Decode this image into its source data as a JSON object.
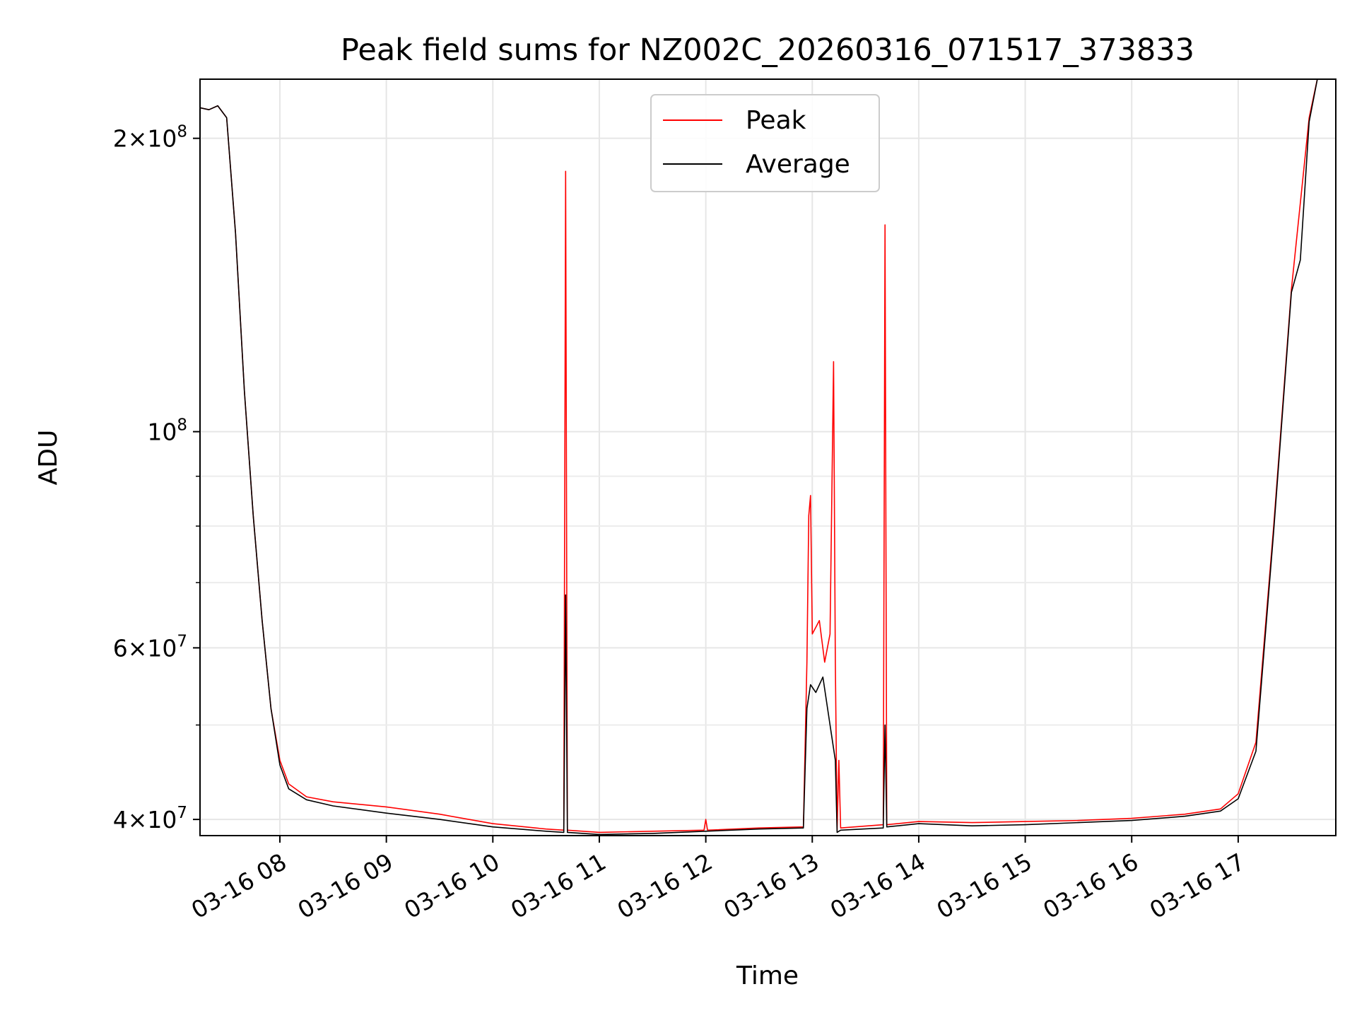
{
  "chart_data": {
    "type": "line",
    "title": "Peak field sums for NZ002C_20260316_071517_373833",
    "xlabel": "Time",
    "ylabel": "ADU",
    "yscale": "log",
    "xlim": [
      "03-16 07:15",
      "03-16 17:55"
    ],
    "ylim": [
      38500000,
      230000000
    ],
    "grid": true,
    "legend_position": "top-center",
    "x_ticks": [
      "03-16 08",
      "03-16 09",
      "03-16 10",
      "03-16 11",
      "03-16 12",
      "03-16 13",
      "03-16 14",
      "03-16 15",
      "03-16 16",
      "03-16 17"
    ],
    "y_ticks": [
      {
        "value": 40000000,
        "mantissa": "4",
        "exponent": "7"
      },
      {
        "value": 60000000,
        "mantissa": "6",
        "exponent": "7"
      },
      {
        "value": 100000000,
        "mantissa": "",
        "exponent": "8"
      },
      {
        "value": 200000000,
        "mantissa": "2",
        "exponent": "8"
      }
    ],
    "y_minor_ticks": [
      50000000,
      70000000,
      80000000,
      90000000
    ],
    "series": [
      {
        "name": "Peak",
        "color": "#ff0000",
        "points": [
          [
            "07:15",
            215000000
          ],
          [
            "07:20",
            214000000
          ],
          [
            "07:25",
            216000000
          ],
          [
            "07:30",
            210000000
          ],
          [
            "07:35",
            160000000
          ],
          [
            "07:40",
            110000000
          ],
          [
            "07:45",
            82000000
          ],
          [
            "07:50",
            64000000
          ],
          [
            "07:55",
            52000000
          ],
          [
            "08:00",
            46000000
          ],
          [
            "08:05",
            43500000
          ],
          [
            "08:15",
            42200000
          ],
          [
            "08:30",
            41700000
          ],
          [
            "09:00",
            41200000
          ],
          [
            "09:30",
            40500000
          ],
          [
            "10:00",
            39600000
          ],
          [
            "10:30",
            39100000
          ],
          [
            "10:40",
            39000000
          ],
          [
            "10:41",
            185000000
          ],
          [
            "10:42",
            39000000
          ],
          [
            "11:00",
            38800000
          ],
          [
            "11:30",
            38900000
          ],
          [
            "11:59",
            39000000
          ],
          [
            "12:00",
            40000000
          ],
          [
            "12:01",
            39000000
          ],
          [
            "12:30",
            39200000
          ],
          [
            "12:55",
            39300000
          ],
          [
            "12:57",
            58000000
          ],
          [
            "12:58",
            82000000
          ],
          [
            "12:59",
            86000000
          ],
          [
            "13:00",
            62000000
          ],
          [
            "13:04",
            64000000
          ],
          [
            "13:07",
            58000000
          ],
          [
            "13:10",
            62000000
          ],
          [
            "13:12",
            118000000
          ],
          [
            "13:13",
            58000000
          ],
          [
            "13:14",
            39000000
          ],
          [
            "13:15",
            46000000
          ],
          [
            "13:16",
            39200000
          ],
          [
            "13:40",
            39500000
          ],
          [
            "13:41",
            163000000
          ],
          [
            "13:42",
            39500000
          ],
          [
            "14:00",
            39800000
          ],
          [
            "14:30",
            39700000
          ],
          [
            "15:00",
            39800000
          ],
          [
            "15:30",
            39900000
          ],
          [
            "16:00",
            40100000
          ],
          [
            "16:30",
            40500000
          ],
          [
            "16:50",
            41000000
          ],
          [
            "17:00",
            42500000
          ],
          [
            "17:10",
            48000000
          ],
          [
            "17:20",
            80000000
          ],
          [
            "17:30",
            140000000
          ],
          [
            "17:40",
            210000000
          ],
          [
            "17:45",
            232000000
          ]
        ]
      },
      {
        "name": "Average",
        "color": "#000000",
        "points": [
          [
            "07:15",
            215000000
          ],
          [
            "07:20",
            214000000
          ],
          [
            "07:25",
            216000000
          ],
          [
            "07:30",
            210000000
          ],
          [
            "07:35",
            160000000
          ],
          [
            "07:40",
            110000000
          ],
          [
            "07:45",
            82000000
          ],
          [
            "07:50",
            64000000
          ],
          [
            "07:55",
            52000000
          ],
          [
            "08:00",
            45500000
          ],
          [
            "08:05",
            43000000
          ],
          [
            "08:15",
            41900000
          ],
          [
            "08:30",
            41300000
          ],
          [
            "09:00",
            40600000
          ],
          [
            "09:30",
            40000000
          ],
          [
            "10:00",
            39300000
          ],
          [
            "10:30",
            38900000
          ],
          [
            "10:40",
            38800000
          ],
          [
            "10:41",
            68000000
          ],
          [
            "10:42",
            38800000
          ],
          [
            "11:00",
            38600000
          ],
          [
            "11:30",
            38700000
          ],
          [
            "12:00",
            38900000
          ],
          [
            "12:30",
            39100000
          ],
          [
            "12:55",
            39200000
          ],
          [
            "12:57",
            52000000
          ],
          [
            "12:59",
            55000000
          ],
          [
            "13:02",
            54000000
          ],
          [
            "13:06",
            56000000
          ],
          [
            "13:10",
            50000000
          ],
          [
            "13:13",
            46000000
          ],
          [
            "13:14",
            38800000
          ],
          [
            "13:16",
            39000000
          ],
          [
            "13:40",
            39200000
          ],
          [
            "13:41",
            50000000
          ],
          [
            "13:42",
            39300000
          ],
          [
            "14:00",
            39600000
          ],
          [
            "14:30",
            39400000
          ],
          [
            "15:00",
            39500000
          ],
          [
            "15:30",
            39700000
          ],
          [
            "16:00",
            39900000
          ],
          [
            "16:30",
            40300000
          ],
          [
            "16:50",
            40800000
          ],
          [
            "17:00",
            42000000
          ],
          [
            "17:10",
            47000000
          ],
          [
            "17:20",
            79000000
          ],
          [
            "17:30",
            139000000
          ],
          [
            "17:35",
            150000000
          ],
          [
            "17:40",
            208000000
          ],
          [
            "17:45",
            232000000
          ]
        ]
      }
    ]
  }
}
